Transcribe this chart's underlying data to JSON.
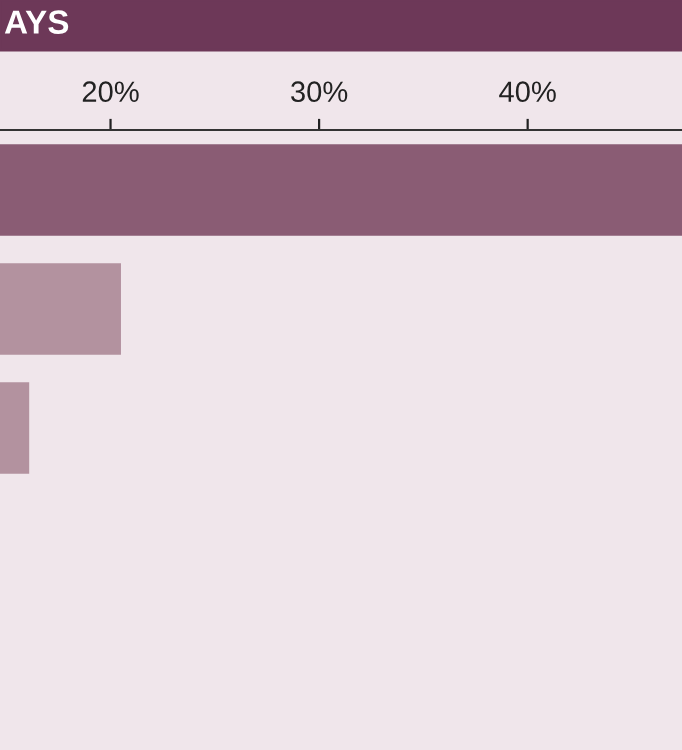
{
  "chart_data": {
    "type": "bar",
    "orientation": "horizontal",
    "title": "AYS",
    "categories": [
      null,
      null,
      null
    ],
    "values": [
      47.4,
      20.5,
      16.1
    ],
    "colors": [
      "#8a5c74",
      "#b3929f",
      "#b3929f"
    ],
    "xlim": [
      14.7,
      47.4
    ],
    "xticks": [
      {
        "value": 20,
        "label": "20%"
      },
      {
        "value": 30,
        "label": "30%"
      },
      {
        "value": 40,
        "label": "40%"
      }
    ],
    "grid": false,
    "legend": false
  }
}
